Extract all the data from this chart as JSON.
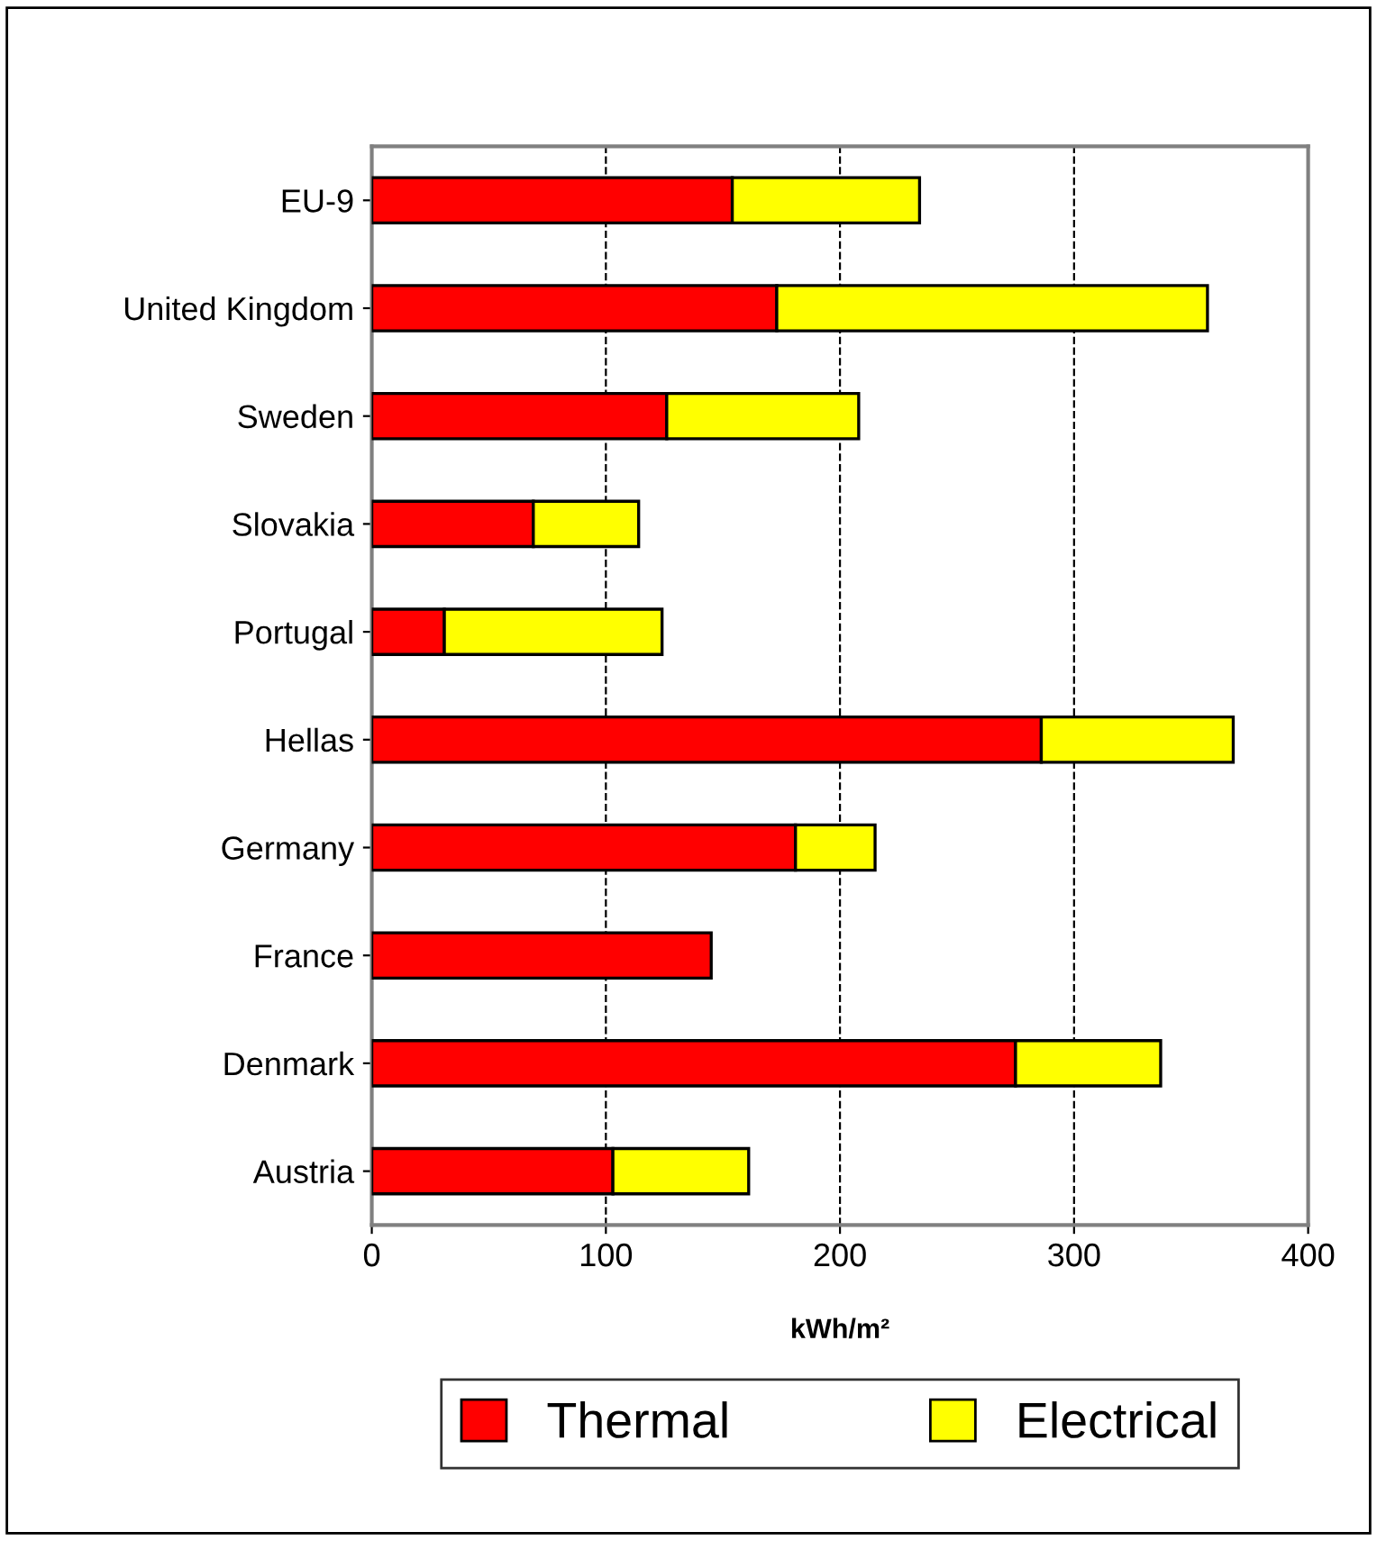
{
  "chart_data": {
    "type": "bar",
    "orientation": "horizontal",
    "stacked": true,
    "categories": [
      "EU-9",
      "United Kingdom",
      "Sweden",
      "Slovakia",
      "Portugal",
      "Hellas",
      "Germany",
      "France",
      "Denmark",
      "Austria"
    ],
    "series": [
      {
        "name": "Thermal",
        "color": "#ff0000",
        "values": [
          154,
          173,
          126,
          69,
          31,
          286,
          181,
          145,
          275,
          103
        ]
      },
      {
        "name": "Electrical",
        "color": "#ffff00",
        "values": [
          80,
          184,
          82,
          45,
          93,
          82,
          34,
          null,
          62,
          58
        ]
      }
    ],
    "xlabel": "kWh/m²",
    "xlim": [
      0,
      400
    ],
    "xticks": [
      0,
      100,
      200,
      300,
      400
    ],
    "grid": "x",
    "legend": "bottom"
  }
}
